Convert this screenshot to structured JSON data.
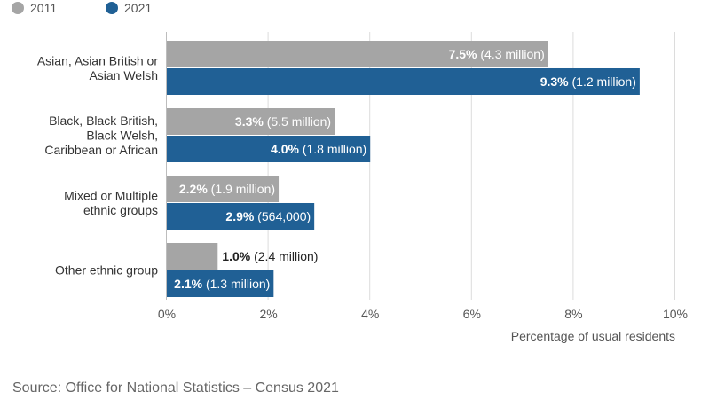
{
  "chart_data": {
    "type": "bar",
    "orientation": "horizontal",
    "categories": [
      "Asian, Asian British or Asian Welsh",
      "Black, Black British, Black Welsh, Caribbean or African",
      "Mixed or Multiple ethnic groups",
      "Other ethnic group"
    ],
    "series": [
      {
        "name": "2011",
        "color": "#a5a5a5",
        "values": [
          7.5,
          3.3,
          2.2,
          1.0
        ],
        "value_labels": [
          "7.5%",
          "3.3%",
          "2.2%",
          "1.0%"
        ],
        "count_labels": [
          "(4.3 million)",
          "(5.5 million)",
          "(1.9 million)",
          "(2.4 million)"
        ]
      },
      {
        "name": "2021",
        "color": "#206095",
        "values": [
          9.3,
          4.0,
          2.9,
          2.1
        ],
        "value_labels": [
          "9.3%",
          "4.0%",
          "2.9%",
          "2.1%"
        ],
        "count_labels": [
          "(1.2 million)",
          "(1.8 million)",
          "(564,000)",
          "(1.3 million)"
        ]
      }
    ],
    "xlabel": "Percentage of usual residents",
    "ylabel": "",
    "xlim": [
      0,
      10
    ],
    "xticks": [
      0,
      2,
      4,
      6,
      8,
      10
    ],
    "xtick_labels": [
      "0%",
      "2%",
      "4%",
      "6%",
      "8%",
      "10%"
    ],
    "grid": true,
    "legend_placement": "top-left"
  },
  "source": "Source: Office for National Statistics – Census 2021"
}
